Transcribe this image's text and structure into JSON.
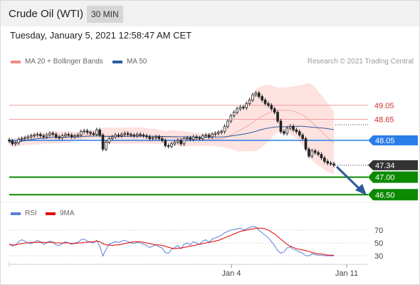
{
  "header": {
    "title": "Crude Oil (WTI)",
    "timeframe": "30 MIN"
  },
  "timestamp": "Tuesday, January 5, 2021 12:58:47 AM CET",
  "legend": {
    "bb": "MA 20 + Bollinger Bands",
    "ma50": "MA 50",
    "copyright": "Research © 2021 Trading Central"
  },
  "rsi_legend": {
    "rsi": "RSI",
    "ma9": "9MA"
  },
  "colors": {
    "bb": "#f28b82",
    "ma50": "#2c5aa0",
    "rsi": "#5b7fd6",
    "ma9": "#e00000",
    "resistance": "#e05555",
    "pivot": "#2b7de9",
    "support": "#0b8a00",
    "price": "#333333",
    "arrow": "#2c5a9a"
  },
  "chart_data": [
    {
      "type": "candlestick",
      "x_ticks": [
        "Jan 4",
        "Jan 11"
      ],
      "levels": [
        {
          "kind": "resistance",
          "label": "49.05",
          "value": 49.05
        },
        {
          "kind": "resistance",
          "label": "48.65",
          "value": 48.65
        },
        {
          "kind": "pivot",
          "label": "48.05",
          "value": 48.05
        },
        {
          "kind": "last",
          "label": "47.34",
          "value": 47.34
        },
        {
          "kind": "support",
          "label": "47.00",
          "value": 47.0
        },
        {
          "kind": "support",
          "label": "46.50",
          "value": 46.5
        }
      ],
      "close": [
        48.03,
        47.95,
        47.98,
        48.08,
        48.1,
        48.12,
        48.15,
        48.18,
        48.2,
        48.22,
        48.18,
        48.15,
        48.2,
        48.25,
        48.22,
        48.15,
        48.12,
        48.18,
        48.22,
        48.2,
        48.15,
        48.18,
        48.2,
        48.3,
        48.32,
        48.28,
        48.25,
        48.22,
        48.35,
        48.2,
        47.8,
        48.0,
        48.1,
        48.15,
        48.2,
        48.18,
        48.22,
        48.25,
        48.22,
        48.2,
        48.18,
        48.22,
        48.2,
        48.18,
        48.15,
        48.1,
        48.12,
        48.15,
        48.1,
        48.05,
        47.9,
        47.88,
        47.95,
        48.0,
        48.05,
        47.95,
        48.1,
        48.12,
        48.08,
        48.15,
        48.12,
        48.1,
        48.18,
        48.2,
        48.15,
        48.22,
        48.25,
        48.28,
        48.3,
        48.45,
        48.6,
        48.75,
        48.85,
        48.95,
        49.0,
        48.98,
        49.1,
        49.2,
        49.35,
        49.4,
        49.3,
        49.2,
        49.1,
        49.05,
        48.95,
        48.85,
        48.6,
        48.3,
        48.25,
        48.4,
        48.45,
        48.35,
        48.3,
        48.2,
        48.1,
        47.8,
        47.6,
        47.75,
        47.7,
        47.65,
        47.55,
        47.45,
        47.4,
        47.38,
        47.34
      ]
    },
    {
      "type": "line",
      "name": "RSI",
      "y_ticks": [
        70,
        50,
        30
      ],
      "ylim": [
        20,
        80
      ],
      "series": [
        {
          "name": "RSI",
          "values": [
            48,
            45,
            47,
            52,
            55,
            53,
            50,
            49,
            51,
            54,
            52,
            48,
            50,
            53,
            51,
            47,
            46,
            49,
            52,
            50,
            48,
            50,
            51,
            55,
            56,
            53,
            51,
            50,
            54,
            45,
            30,
            40,
            48,
            50,
            52,
            51,
            53,
            54,
            52,
            50,
            49,
            51,
            50,
            48,
            46,
            43,
            45,
            47,
            44,
            42,
            35,
            34,
            40,
            43,
            46,
            41,
            48,
            50,
            47,
            52,
            50,
            48,
            53,
            55,
            51,
            56,
            58,
            60,
            62,
            66,
            68,
            70,
            71,
            72,
            73,
            70,
            72,
            74,
            76,
            75,
            70,
            66,
            62,
            58,
            52,
            46,
            38,
            34,
            36,
            42,
            44,
            40,
            38,
            36,
            34,
            30,
            30,
            33,
            32,
            31,
            31,
            30,
            30,
            30,
            30
          ]
        },
        {
          "name": "9MA",
          "values": [
            48,
            47,
            47,
            48,
            49,
            50,
            50,
            51,
            51,
            51,
            51,
            51,
            51,
            51,
            51,
            50,
            50,
            50,
            50,
            50,
            49,
            49,
            50,
            50,
            51,
            51,
            52,
            52,
            53,
            52,
            49,
            47,
            47,
            46,
            47,
            47,
            48,
            49,
            50,
            51,
            52,
            52,
            52,
            51,
            50,
            49,
            48,
            47,
            47,
            46,
            45,
            43,
            42,
            41,
            42,
            42,
            43,
            44,
            45,
            46,
            47,
            48,
            49,
            50,
            51,
            52,
            53,
            54,
            56,
            58,
            60,
            62,
            64,
            66,
            68,
            69,
            70,
            71,
            72,
            73,
            73,
            73,
            72,
            70,
            67,
            64,
            60,
            56,
            52,
            48,
            45,
            43,
            41,
            40,
            39,
            38,
            37,
            35,
            34,
            33,
            33,
            32,
            31,
            31,
            31
          ]
        }
      ]
    }
  ]
}
